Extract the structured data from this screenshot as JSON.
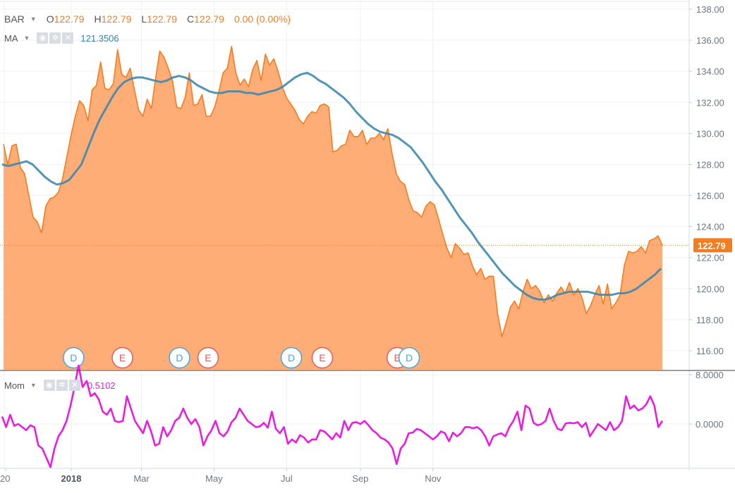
{
  "symbol": "BAR",
  "ohlc": {
    "o_label": "O",
    "o": "122.79",
    "h_label": "H",
    "h": "122.79",
    "l_label": "L",
    "l": "122.79",
    "c_label": "C",
    "c": "122.79",
    "change": "0.00 (0.00%)"
  },
  "ma_legend": {
    "label": "MA",
    "value": "121.3506"
  },
  "mom_legend": {
    "label": "Mom",
    "value": "0.5102"
  },
  "last_price_label": "122.79",
  "colors": {
    "price_line": "#f57c1f",
    "price_fill": "#ffad77",
    "ma_line": "#3a87ad",
    "mom_line": "#e91de0",
    "event_D": "#4aa3df",
    "event_E": "#e05c5c"
  },
  "chart_data": [
    {
      "type": "area",
      "name": "price-panel",
      "x_ticks": [
        "20",
        "2018",
        "Mar",
        "May",
        "Jul",
        "Sep",
        "Nov"
      ],
      "y_ticks": [
        "138.00",
        "136.00",
        "134.00",
        "132.00",
        "130.00",
        "128.00",
        "126.00",
        "124.00",
        "122.00",
        "120.00",
        "118.00",
        "116.00"
      ],
      "ylim": [
        115.2,
        138.6
      ],
      "last_value": 122.79,
      "series": [
        {
          "name": "BAR",
          "values": [
            129.3,
            128.0,
            129.2,
            129.3,
            127.8,
            127.4,
            126.0,
            124.6,
            124.3,
            123.6,
            125.3,
            125.8,
            125.9,
            126.2,
            127.1,
            128.5,
            129.9,
            131.1,
            132.1,
            131.8,
            130.8,
            132.8,
            133.1,
            134.6,
            132.9,
            132.8,
            133.2,
            135.4,
            133.8,
            133.6,
            134.2,
            132.8,
            131.5,
            131.1,
            132.2,
            131.6,
            133.5,
            135.3,
            134.9,
            134.2,
            133.4,
            131.7,
            131.6,
            132.3,
            133.9,
            131.8,
            131.9,
            132.5,
            131.1,
            131.1,
            131.7,
            132.7,
            133.9,
            134.2,
            135.6,
            133.9,
            133.1,
            133.5,
            133.0,
            134.1,
            134.7,
            133.4,
            135.1,
            134.4,
            134.8,
            134.0,
            133.0,
            132.3,
            131.9,
            131.5,
            130.9,
            130.6,
            131.1,
            131.4,
            131.3,
            131.8,
            131.9,
            131.7,
            128.8,
            128.9,
            129.2,
            129.3,
            130.2,
            129.8,
            129.8,
            130.2,
            129.3,
            129.7,
            129.7,
            130.0,
            129.6,
            130.3,
            128.7,
            127.4,
            126.9,
            126.7,
            125.7,
            125.0,
            124.9,
            124.6,
            125.3,
            125.6,
            125.4,
            124.5,
            123.5,
            122.6,
            122.0,
            122.9,
            122.6,
            122.2,
            122.3,
            121.5,
            120.9,
            121.3,
            120.6,
            120.8,
            120.8,
            118.4,
            116.9,
            117.8,
            118.8,
            119.2,
            118.7,
            119.8,
            120.6,
            120.0,
            120.2,
            119.8,
            119.1,
            119.6,
            119.2,
            119.7,
            120.1,
            119.7,
            120.4,
            119.6,
            120.0,
            119.4,
            118.4,
            118.9,
            119.6,
            120.2,
            119.0,
            120.3,
            118.7,
            119.1,
            119.6,
            121.5,
            122.4,
            122.3,
            122.4,
            122.7,
            122.3,
            123.1,
            123.2,
            123.4,
            122.79
          ]
        },
        {
          "name": "MA",
          "values": [
            128.0,
            127.9,
            128.0,
            128.1,
            128.2,
            128.0,
            127.6,
            127.2,
            126.9,
            126.7,
            126.8,
            127.0,
            127.5,
            128.0,
            129.0,
            130.0,
            130.9,
            131.6,
            132.3,
            132.9,
            133.3,
            133.5,
            133.6,
            133.6,
            133.5,
            133.4,
            133.3,
            133.4,
            133.6,
            133.7,
            133.6,
            133.4,
            133.1,
            132.9,
            132.7,
            132.6,
            132.6,
            132.7,
            132.7,
            132.7,
            132.6,
            132.6,
            132.5,
            132.6,
            132.7,
            132.8,
            133.0,
            133.3,
            133.6,
            133.8,
            133.9,
            133.7,
            133.4,
            133.2,
            132.9,
            132.6,
            132.3,
            131.9,
            131.4,
            131.0,
            130.6,
            130.3,
            130.1,
            130.0,
            129.9,
            129.7,
            129.4,
            129.1,
            128.6,
            128.1,
            127.5,
            126.9,
            126.4,
            125.8,
            125.2,
            124.6,
            124.1,
            123.6,
            123.0,
            122.5,
            122.0,
            121.5,
            121.0,
            120.6,
            120.2,
            119.9,
            119.6,
            119.4,
            119.3,
            119.3,
            119.4,
            119.6,
            119.7,
            119.8,
            119.8,
            119.8,
            119.8,
            119.7,
            119.6,
            119.6,
            119.6,
            119.7,
            119.7,
            119.8,
            120.0,
            120.3,
            120.6,
            120.9,
            121.3
          ]
        }
      ],
      "events": [
        {
          "label": "D",
          "x": "2018-01-03"
        },
        {
          "label": "E",
          "x": "2018-02-13"
        },
        {
          "label": "D",
          "x": "2018-04-02"
        },
        {
          "label": "E",
          "x": "2018-04-26"
        },
        {
          "label": "D",
          "x": "2018-07-05"
        },
        {
          "label": "E",
          "x": "2018-07-31"
        },
        {
          "label": "E",
          "x": "2018-10-02"
        },
        {
          "label": "D",
          "x": "2018-10-12"
        }
      ]
    },
    {
      "type": "line",
      "name": "momentum-panel",
      "y_ticks": [
        "8.0000",
        "0.0000"
      ],
      "ylim": [
        -11.5,
        8.5
      ],
      "series": [
        {
          "name": "Mom",
          "values": [
            1.2,
            -0.5,
            1.5,
            -0.3,
            0.0,
            -0.5,
            -1.0,
            -0.2,
            -0.5,
            -3.5,
            -4.0,
            -5.5,
            -7.0,
            -4.0,
            -2.0,
            -1.0,
            0.5,
            3.0,
            6.0,
            9.5,
            6.0,
            7.0,
            4.5,
            5.0,
            4.0,
            2.0,
            1.5,
            2.5,
            0.5,
            0.3,
            0.5,
            4.5,
            2.5,
            0.5,
            -0.5,
            -1.5,
            0.5,
            -1.2,
            -3.5,
            -3.2,
            -0.5,
            -2.0,
            -1.0,
            0.5,
            1.0,
            2.5,
            1.0,
            0.0,
            0.8,
            -0.5,
            -3.5,
            -2.0,
            -1.0,
            0.5,
            -1.5,
            -2.0,
            -1.2,
            0.3,
            1.0,
            2.5,
            1.5,
            0.5,
            0.0,
            -0.5,
            -0.4,
            0.2,
            -0.6,
            2.0,
            -0.8,
            -1.5,
            -0.5,
            -3.2,
            -2.5,
            -3.0,
            -1.8,
            -2.2,
            -3.0,
            -2.5,
            -2.5,
            -1.0,
            -1.2,
            -1.8,
            -2.5,
            -1.5,
            -2.2,
            0.5,
            -1.0,
            0.2,
            0.3,
            0.0,
            0.5,
            -0.2,
            -1.0,
            -1.5,
            -2.2,
            -2.5,
            -3.0,
            -4.0,
            -6.5,
            -4.0,
            -3.2,
            -1.5,
            -1.4,
            -0.8,
            -1.0,
            -1.5,
            -2.0,
            -2.5,
            -2.0,
            -1.2,
            -1.5,
            -2.8,
            -1.4,
            -2.0,
            -1.5,
            -0.5,
            -0.5,
            -0.7,
            -0.5,
            -1.0,
            -2.0,
            -3.5,
            -2.0,
            -1.7,
            -1.5,
            -2.0,
            -0.5,
            0.5,
            2.0,
            -1.0,
            3.0,
            2.5,
            0.2,
            -0.2,
            0.0,
            0.5,
            2.5,
            0.5,
            -0.8,
            -1.0,
            0.1,
            0.2,
            0.1,
            0.3,
            -0.5,
            0.2,
            -2.0,
            -1.0,
            0.0,
            -0.5,
            -1.0,
            0.3,
            -1.0,
            -0.5,
            0.5,
            4.5,
            2.5,
            3.0,
            2.2,
            2.5,
            3.2,
            4.5,
            3.0,
            -0.5,
            0.5102
          ]
        }
      ]
    }
  ]
}
